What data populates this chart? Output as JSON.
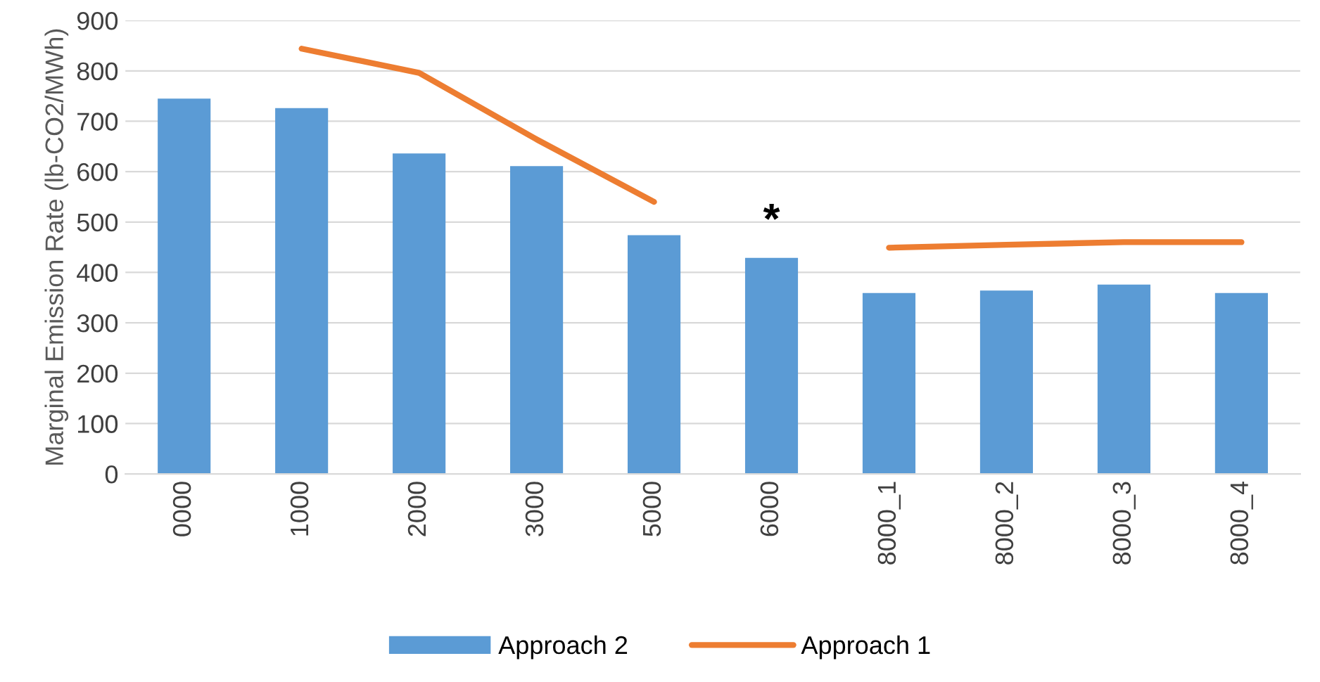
{
  "chart_data": {
    "type": "bar",
    "ylabel": "Marginal Emission Rate (lb-CO2/MWh)",
    "categories": [
      "0000",
      "1000",
      "2000",
      "3000",
      "5000",
      "6000",
      "8000_1",
      "8000_2",
      "8000_3",
      "8000_4"
    ],
    "series": [
      {
        "name": "Approach 2",
        "color": "#5b9bd5",
        "values": [
          745,
          726,
          636,
          611,
          474,
          429,
          359,
          364,
          376,
          359
        ]
      },
      {
        "name": "Approach 1",
        "type": "line",
        "color": "#ed7d31",
        "values": [
          null,
          844,
          796,
          664,
          540,
          null,
          449,
          455,
          460,
          460
        ]
      }
    ],
    "annotations": [
      "*"
    ],
    "ylim": [
      0,
      900
    ],
    "yticks": [
      0,
      100,
      200,
      300,
      400,
      500,
      600,
      700,
      800,
      900
    ],
    "grid": "y",
    "legend": "bottom"
  }
}
